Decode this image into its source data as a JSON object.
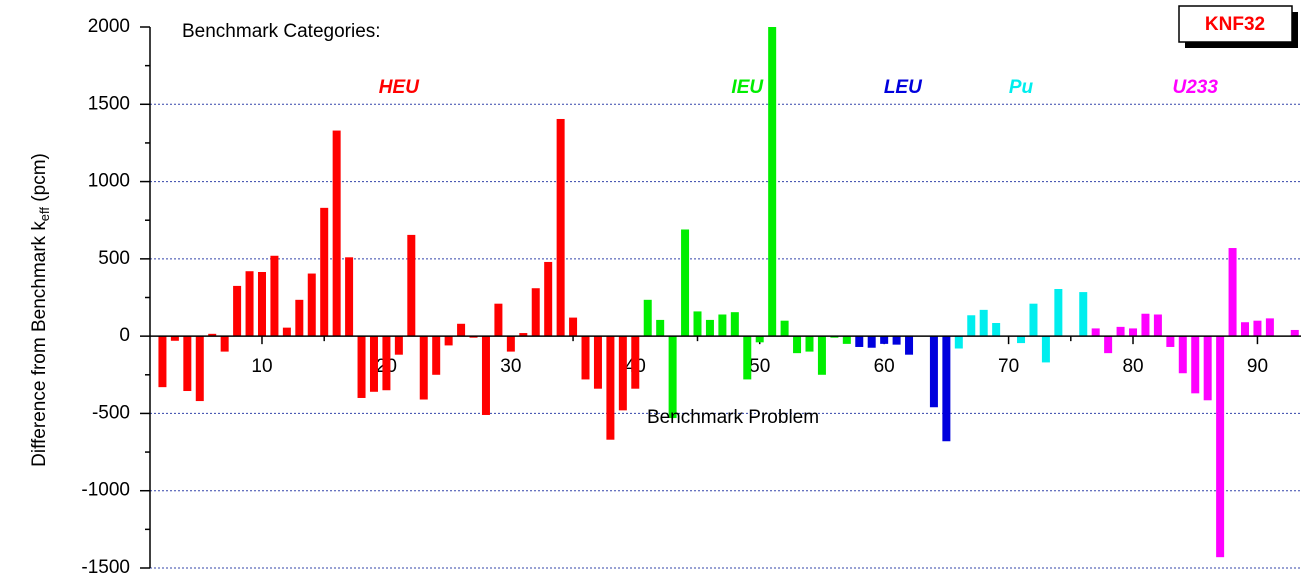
{
  "chart_data": {
    "type": "bar",
    "annotation": "Benchmark Categories:",
    "label_box": "KNF32",
    "xlabel": "Benchmark Problem",
    "ylabel": {
      "text": "Difference from Benchmark k",
      "sub": "eff",
      "suffix": " (pcm)"
    },
    "xlim": [
      1,
      93.5
    ],
    "xticks": [
      10,
      20,
      30,
      40,
      50,
      60,
      70,
      80,
      90
    ],
    "ylim": [
      -1500,
      2000
    ],
    "yticks": [
      -1500,
      -1000,
      -500,
      0,
      500,
      1000,
      1500,
      2000
    ],
    "grid": true,
    "series": [
      {
        "name": "HEU",
        "color": "#ff0000",
        "x": [
          2,
          3,
          4,
          5,
          6,
          7,
          8,
          9,
          10,
          11,
          12,
          13,
          14,
          15,
          16,
          17,
          18,
          19,
          20,
          21,
          22,
          23,
          24,
          25,
          26,
          27,
          28,
          29,
          30,
          31,
          32,
          33,
          34,
          35,
          36,
          37,
          38,
          39,
          40
        ],
        "values": [
          -330,
          -30,
          -355,
          -420,
          15,
          -100,
          325,
          420,
          415,
          520,
          55,
          235,
          405,
          830,
          1330,
          510,
          -400,
          -360,
          -350,
          -120,
          655,
          -410,
          -250,
          -60,
          80,
          -10,
          -510,
          210,
          -100,
          20,
          310,
          480,
          1405,
          120,
          -280,
          -340,
          -670,
          -480,
          -340
        ]
      },
      {
        "name": "IEU",
        "color": "#00ee00",
        "x": [
          41,
          42,
          43,
          44,
          45,
          46,
          47,
          48,
          49,
          50,
          51,
          52,
          53,
          54,
          55,
          56,
          57
        ],
        "values": [
          235,
          105,
          -530,
          690,
          160,
          105,
          140,
          155,
          -280,
          -40,
          2000,
          100,
          -110,
          -100,
          -250,
          -10,
          -50
        ]
      },
      {
        "name": "LEU",
        "color": "#0000dd",
        "x": [
          58,
          59,
          60,
          61,
          62,
          64,
          65
        ],
        "values": [
          -70,
          -75,
          -50,
          -55,
          -120,
          -460,
          -680
        ]
      },
      {
        "name": "Pu",
        "color": "#00eeee",
        "x": [
          66,
          67,
          68,
          69,
          71,
          72,
          73,
          74,
          76
        ],
        "values": [
          -80,
          135,
          170,
          85,
          -45,
          210,
          -170,
          305,
          285
        ]
      },
      {
        "name": "U233",
        "color": "#ff00ff",
        "x": [
          77,
          78,
          79,
          80,
          81,
          82,
          83,
          84,
          85,
          86,
          87,
          88,
          89,
          90,
          91,
          93
        ],
        "values": [
          50,
          -110,
          60,
          50,
          145,
          140,
          -70,
          -240,
          -370,
          -415,
          -1430,
          570,
          90,
          100,
          115,
          40
        ]
      }
    ]
  }
}
